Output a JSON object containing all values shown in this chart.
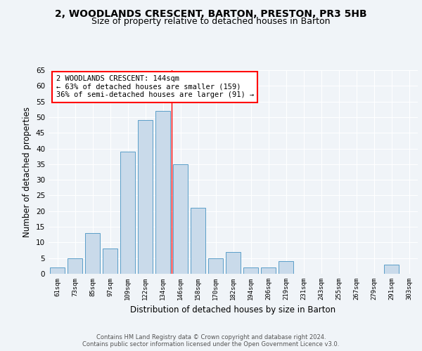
{
  "title1": "2, WOODLANDS CRESCENT, BARTON, PRESTON, PR3 5HB",
  "title2": "Size of property relative to detached houses in Barton",
  "xlabel": "Distribution of detached houses by size in Barton",
  "ylabel": "Number of detached properties",
  "categories": [
    "61sqm",
    "73sqm",
    "85sqm",
    "97sqm",
    "109sqm",
    "122sqm",
    "134sqm",
    "146sqm",
    "158sqm",
    "170sqm",
    "182sqm",
    "194sqm",
    "206sqm",
    "219sqm",
    "231sqm",
    "243sqm",
    "255sqm",
    "267sqm",
    "279sqm",
    "291sqm",
    "303sqm"
  ],
  "values": [
    2,
    5,
    13,
    8,
    39,
    49,
    52,
    35,
    21,
    5,
    7,
    2,
    2,
    4,
    0,
    0,
    0,
    0,
    0,
    3,
    0
  ],
  "bar_color": "#c9daea",
  "bar_edge_color": "#5a9ec8",
  "ref_line_x": 7.0,
  "ref_line_color": "red",
  "annotation_text": "2 WOODLANDS CRESCENT: 144sqm\n← 63% of detached houses are smaller (159)\n36% of semi-detached houses are larger (91) →",
  "annotation_box_color": "white",
  "annotation_box_edge_color": "red",
  "ylim": [
    0,
    65
  ],
  "yticks": [
    0,
    5,
    10,
    15,
    20,
    25,
    30,
    35,
    40,
    45,
    50,
    55,
    60,
    65
  ],
  "footer": "Contains HM Land Registry data © Crown copyright and database right 2024.\nContains public sector information licensed under the Open Government Licence v3.0.",
  "bg_color": "#f0f4f8",
  "plot_bg_color": "#f0f4f8",
  "grid_color": "white",
  "title1_fontsize": 10,
  "title2_fontsize": 9,
  "xlabel_fontsize": 8.5,
  "ylabel_fontsize": 8.5,
  "tick_fontsize": 7.5,
  "xtick_fontsize": 6.5,
  "footer_fontsize": 6,
  "annot_fontsize": 7.5
}
